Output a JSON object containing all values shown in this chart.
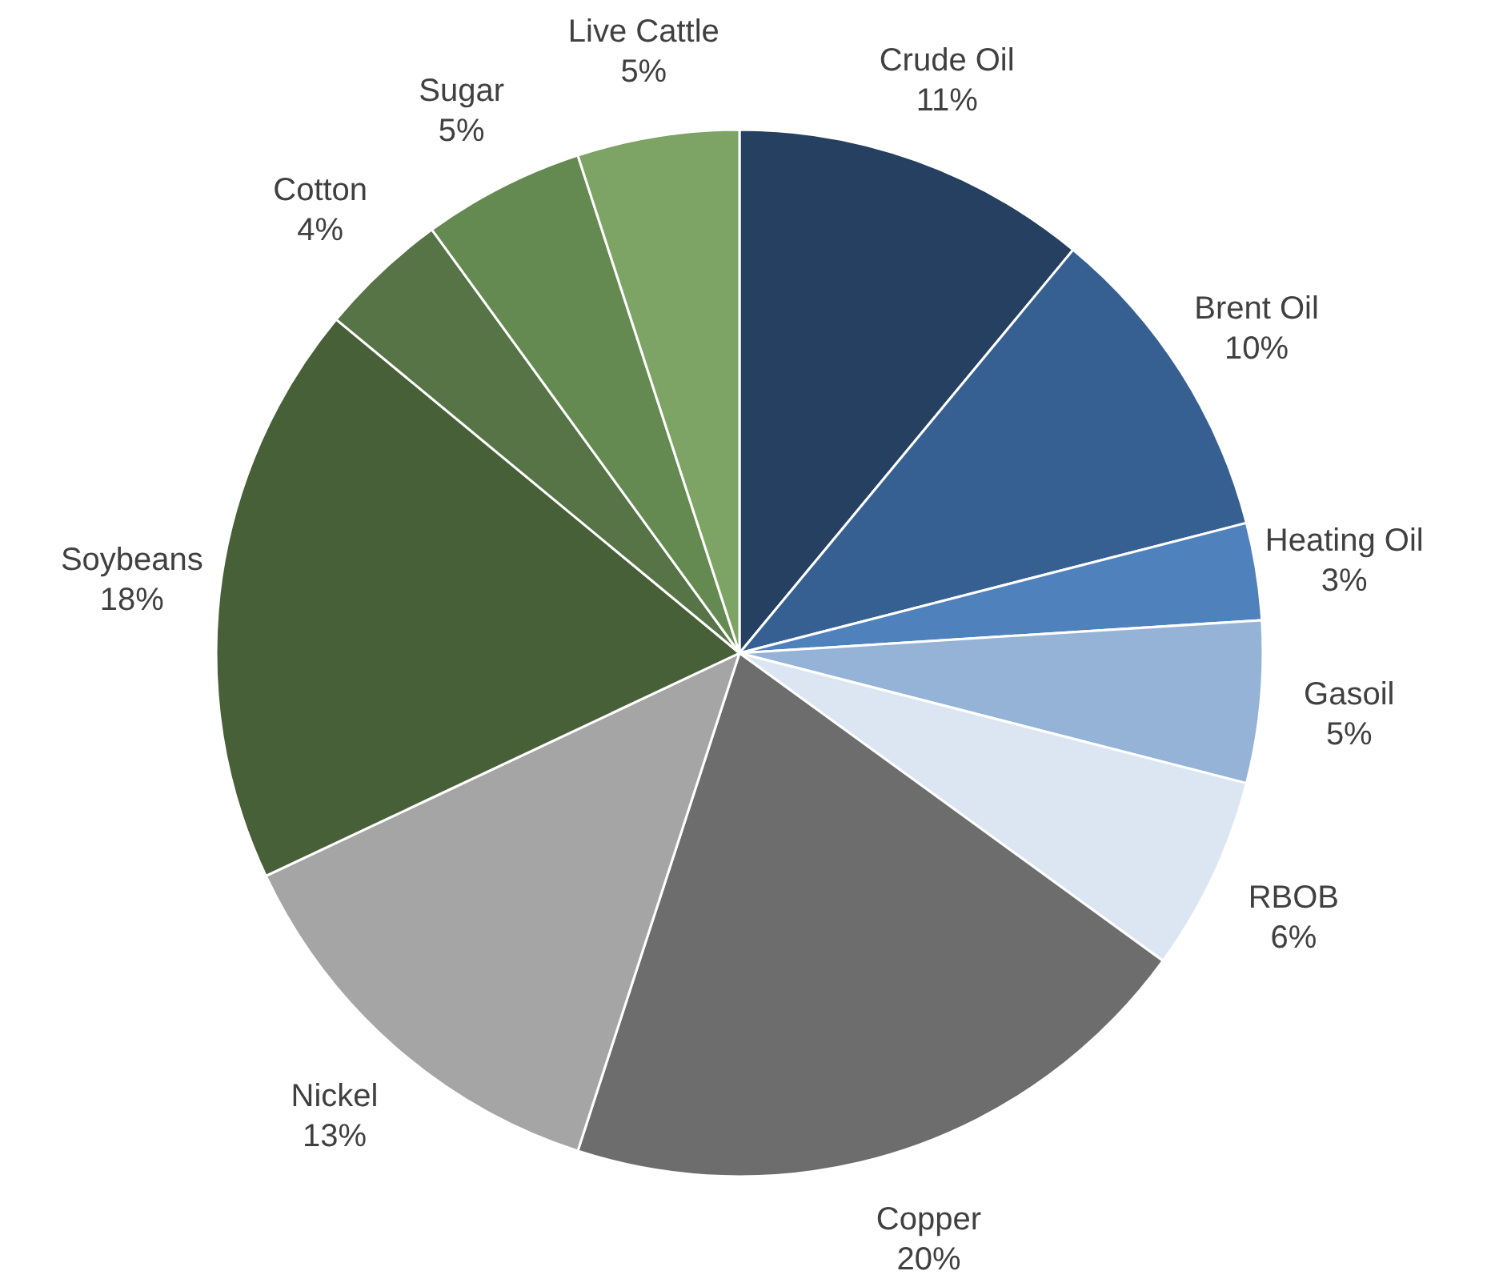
{
  "chart_data": {
    "type": "pie",
    "categories": [
      "Crude Oil",
      "Brent Oil",
      "Heating Oil",
      "Gasoil",
      "RBOB",
      "Copper",
      "Nickel",
      "Soybeans",
      "Cotton",
      "Sugar",
      "Live Cattle"
    ],
    "values": [
      11,
      10,
      3,
      5,
      6,
      20,
      13,
      18,
      4,
      5,
      5
    ],
    "value_labels": [
      "11%",
      "10%",
      "3%",
      "5%",
      "6%",
      "20%",
      "13%",
      "18%",
      "4%",
      "5%",
      "5%"
    ],
    "colors": [
      "#264061",
      "#376092",
      "#4f81bd",
      "#95b3d7",
      "#dce6f2",
      "#6d6d6d",
      "#a5a5a5",
      "#476038",
      "#567445",
      "#658a51",
      "#7da365"
    ]
  }
}
